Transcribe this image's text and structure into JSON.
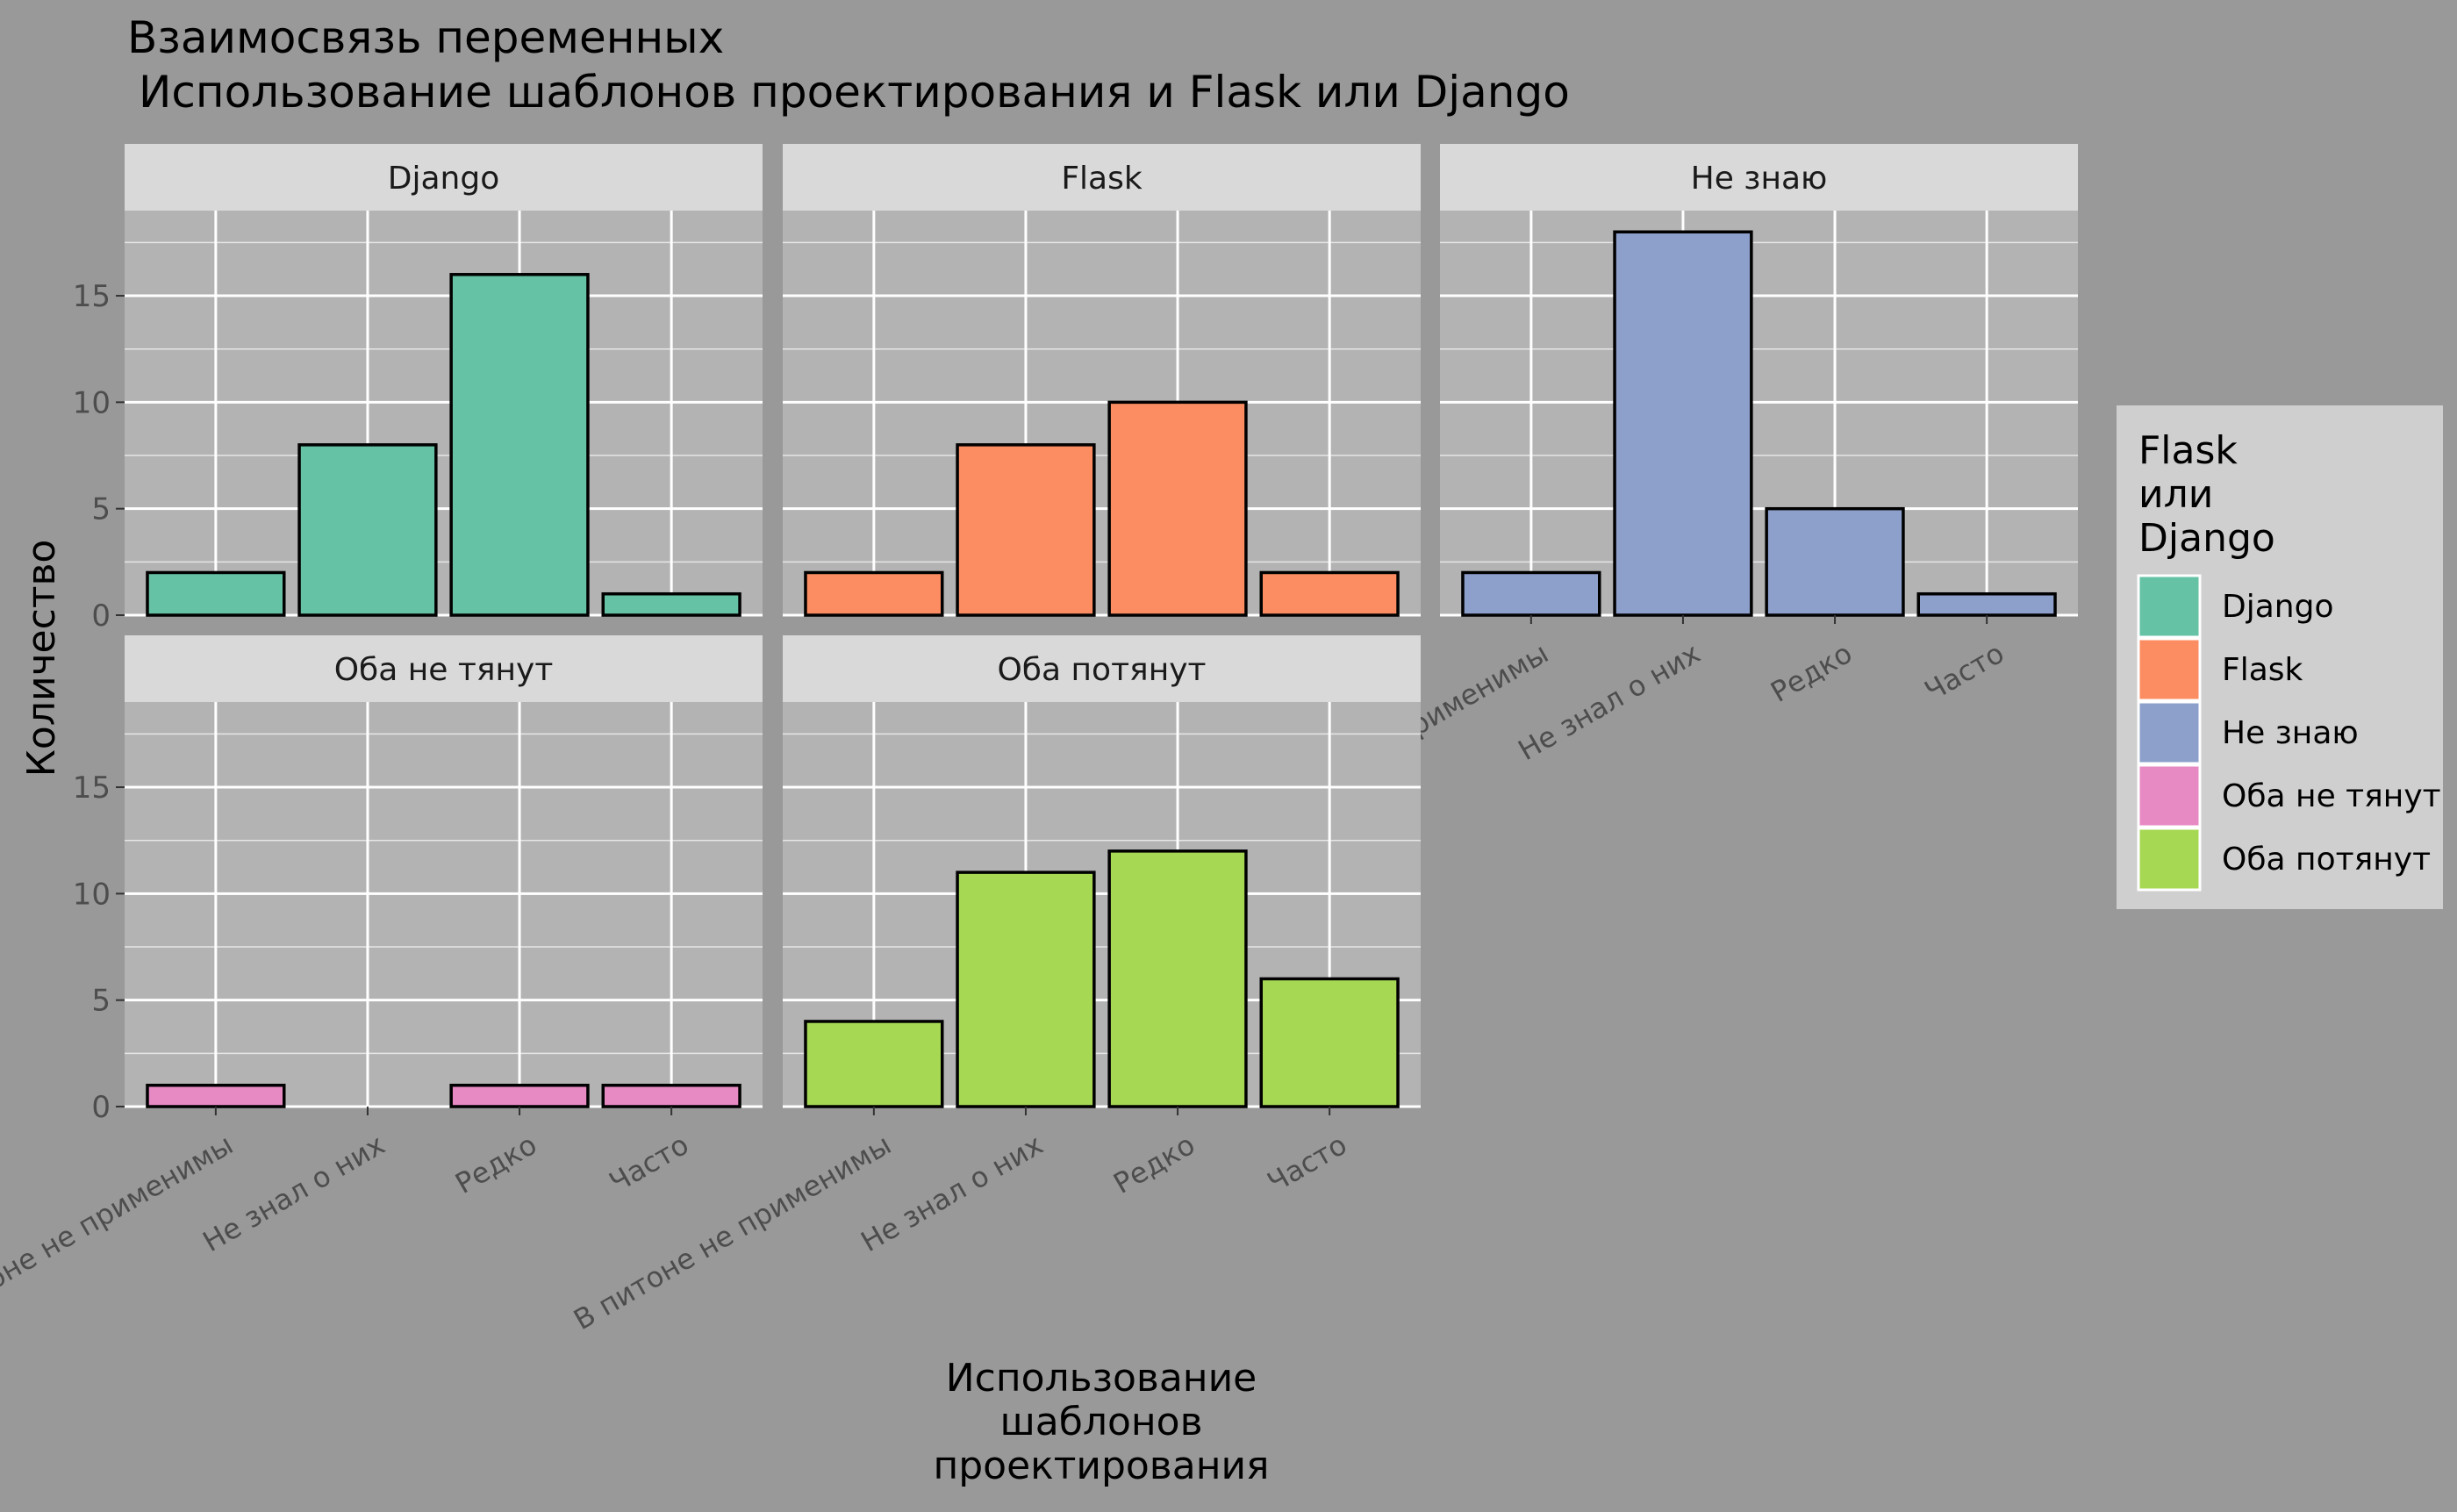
{
  "chart_data": {
    "type": "bar",
    "title": "Взаимосвязь переменных",
    "subtitle": "Использование шаблонов проектирования и Flask или Django",
    "xlabel": "Использование\nшаблонов\nпроектирования",
    "ylabel": "Количество",
    "categories": [
      "В питоне не применимы",
      "Не знал о них",
      "Редко",
      "Часто"
    ],
    "ylim": [
      0,
      19
    ],
    "yticks": [
      0,
      5,
      10,
      15
    ],
    "grid": true,
    "legend": {
      "title": "Flask\nили\nDjango",
      "position": "right",
      "entries": [
        "Django",
        "Flask",
        "Не знаю",
        "Оба не тянут",
        "Оба потянут"
      ]
    },
    "series": [
      {
        "name": "Django",
        "values": [
          2,
          8,
          16,
          1
        ],
        "color": "#66c2a5"
      },
      {
        "name": "Flask",
        "values": [
          2,
          8,
          10,
          2
        ],
        "color": "#fc8d62"
      },
      {
        "name": "Не знаю",
        "values": [
          2,
          18,
          5,
          1
        ],
        "color": "#8da0cb"
      },
      {
        "name": "Оба не тянут",
        "values": [
          1,
          0,
          1,
          1
        ],
        "color": "#e78ac3"
      },
      {
        "name": "Оба потянут",
        "values": [
          4,
          11,
          12,
          6
        ],
        "color": "#a6d854"
      }
    ]
  }
}
